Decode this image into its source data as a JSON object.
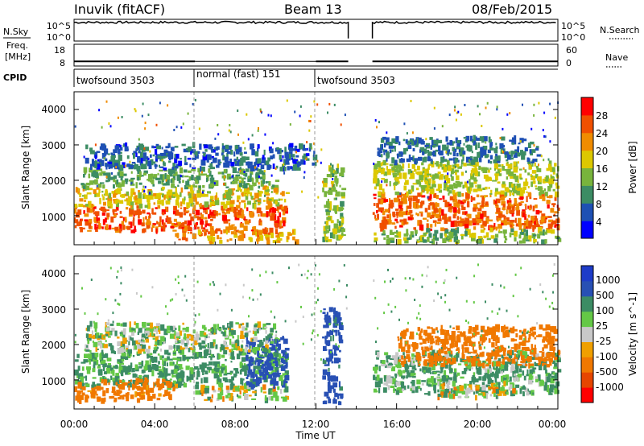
{
  "header": {
    "station": "Inuvik (fitACF)",
    "beam": "Beam 13",
    "date": "08/Feb/2015"
  },
  "noise_panel": {
    "left_label": "N.Sky",
    "left_ticks": [
      "10^5",
      "10^0"
    ],
    "right_ticks": [
      "10^5",
      "10^0"
    ],
    "right_label": "N.Search"
  },
  "freq_panel": {
    "left_label_1": "Freq.",
    "left_label_2": "[MHz]",
    "left_ticks": [
      "18",
      "8"
    ],
    "right_ticks": [
      "60",
      "0"
    ],
    "right_label": "Nave"
  },
  "cpid": {
    "label": "CPID",
    "segments": [
      {
        "name": "twofsound 3503",
        "start_h": 0,
        "end_h": 6
      },
      {
        "name": "normal (fast) 151",
        "start_h": 6,
        "end_h": 12
      },
      {
        "name": "twofsound 3503",
        "start_h": 12,
        "end_h": 24
      }
    ]
  },
  "time_axis": {
    "label": "Time UT",
    "ticks": [
      "00:00",
      "04:00",
      "08:00",
      "12:00",
      "16:00",
      "20:00",
      "00:00"
    ]
  },
  "range_axis": {
    "label": "Slant Range [km]",
    "ticks": [
      "1000",
      "2000",
      "3000",
      "4000"
    ]
  },
  "power_scale": {
    "label": "Power [dB]",
    "ticks": [
      "28",
      "24",
      "20",
      "16",
      "12",
      "8",
      "4"
    ],
    "colors": [
      "#0000ff",
      "#1e50b4",
      "#3c8c64",
      "#78b43c",
      "#dcc800",
      "#f08c00",
      "#f05000",
      "#ff0000"
    ]
  },
  "velocity_scale": {
    "label": "Velocity [m s^-1]",
    "ticks": [
      "1000",
      "500",
      "100",
      "25",
      "-25",
      "-100",
      "-500",
      "-1000"
    ],
    "colors": [
      "#1e3cc8",
      "#2850b4",
      "#3c8c64",
      "#64c846",
      "#c8c8c8",
      "#f0a000",
      "#f07800",
      "#e64600",
      "#ff0000"
    ]
  },
  "chart_data": {
    "type": "heatmap",
    "x_range_hours": [
      0,
      24
    ],
    "y_range_km": [
      180,
      4500
    ],
    "data_gap_hours": [
      13.6,
      14.8
    ],
    "noise": {
      "y_range_log": [
        0,
        5
      ],
      "sky_level_log": 4.3
    },
    "freq": {
      "y_range_mhz": [
        8,
        18
      ],
      "level_mhz": 10.5
    },
    "power_blobs": [
      {
        "t0": 0,
        "t1": 10.5,
        "r0": 550,
        "r1": 1250,
        "v": 26
      },
      {
        "t0": 0,
        "t1": 10.5,
        "r0": 1250,
        "r1": 1800,
        "v": 18
      },
      {
        "t0": 0.3,
        "t1": 10,
        "r0": 1800,
        "r1": 2300,
        "v": 12
      },
      {
        "t0": 0.5,
        "t1": 12,
        "r0": 2300,
        "r1": 3000,
        "v": 7
      },
      {
        "t0": 5,
        "t1": 11,
        "r0": 250,
        "r1": 550,
        "v": 22
      },
      {
        "t0": 12.3,
        "t1": 13.3,
        "r0": 250,
        "r1": 2400,
        "v": 14
      },
      {
        "t0": 14.8,
        "t1": 24,
        "r0": 600,
        "r1": 1600,
        "v": 25
      },
      {
        "t0": 14.8,
        "t1": 24,
        "r0": 1600,
        "r1": 2500,
        "v": 16
      },
      {
        "t0": 14.8,
        "t1": 24,
        "r0": 250,
        "r1": 600,
        "v": 14
      },
      {
        "t0": 15,
        "t1": 23,
        "r0": 2500,
        "r1": 3200,
        "v": 8
      }
    ],
    "velocity_blobs": [
      {
        "t0": 0,
        "t1": 10.5,
        "r0": 800,
        "r1": 1800,
        "v": 150
      },
      {
        "t0": 0,
        "t1": 5,
        "r0": 400,
        "r1": 1000,
        "v": -200
      },
      {
        "t0": 6,
        "t1": 10.5,
        "r0": 400,
        "r1": 800,
        "v": 0
      },
      {
        "t0": 8.5,
        "t1": 10.5,
        "r0": 800,
        "r1": 2200,
        "v": 700
      },
      {
        "t0": 0.5,
        "t1": 10,
        "r0": 1800,
        "r1": 2600,
        "v": 60
      },
      {
        "t0": 12.3,
        "t1": 13.2,
        "r0": 300,
        "r1": 3000,
        "v": 600
      },
      {
        "t0": 14.8,
        "t1": 24,
        "r0": 600,
        "r1": 1800,
        "v": 120
      },
      {
        "t0": 16,
        "t1": 24,
        "r0": 1400,
        "r1": 2500,
        "v": -300
      },
      {
        "t0": 18,
        "t1": 22,
        "r0": 500,
        "r1": 900,
        "v": 0
      }
    ]
  }
}
